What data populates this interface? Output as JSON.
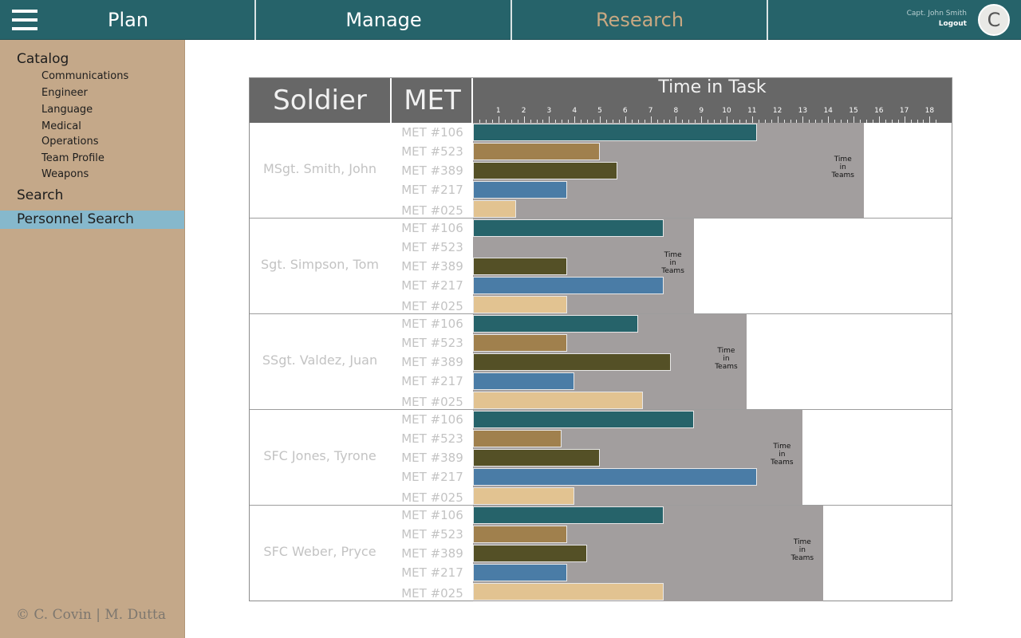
{
  "nav": {
    "tabs": [
      {
        "label": "Plan"
      },
      {
        "label": "Manage"
      },
      {
        "label": "Research"
      }
    ],
    "user_name": "Capt. John Smith",
    "logout_label": "Logout",
    "avatar_initial": "C",
    "menu_icon": "hamburger-menu-icon",
    "active_tab_color": "#c8a882"
  },
  "sidebar": {
    "catalog_label": "Catalog",
    "catalog_items": [
      {
        "label": "Communications"
      },
      {
        "label": "Engineer"
      },
      {
        "label": "Language"
      },
      {
        "label": "Medical"
      },
      {
        "label": "Operations"
      },
      {
        "label": "Team Profile"
      },
      {
        "label": "Weapons"
      }
    ],
    "search_label": "Search",
    "personnel_search_label": "Personnel Search",
    "copyright": "© C. Covin | M. Dutta"
  },
  "grid": {
    "soldier_header": "Soldier",
    "met_header": "MET",
    "time_header": "Time in Task",
    "teams_label": "Time\nin\nTeams"
  },
  "chart_data": {
    "type": "bar",
    "orientation": "horizontal",
    "x_axis_ticks": [
      1,
      2,
      3,
      4,
      5,
      6,
      7,
      8,
      9,
      10,
      11,
      12,
      13,
      14,
      15,
      16,
      17,
      18
    ],
    "xlim": [
      0,
      18.5
    ],
    "met_colors": {
      "MET #106": "#26636a",
      "MET #523": "#a0804d",
      "MET #389": "#545026",
      "MET #217": "#4a7ca6",
      "MET #025": "#e2c391"
    },
    "soldiers": [
      {
        "name": "MSgt. Smith, John",
        "time_in_teams": 15.4,
        "mets": [
          {
            "label": "MET #106",
            "value": 11.2
          },
          {
            "label": "MET #523",
            "value": 5.0
          },
          {
            "label": "MET #389",
            "value": 5.7
          },
          {
            "label": "MET #217",
            "value": 3.7
          },
          {
            "label": "MET #025",
            "value": 1.7
          }
        ]
      },
      {
        "name": "Sgt. Simpson, Tom",
        "time_in_teams": 8.7,
        "mets": [
          {
            "label": "MET #106",
            "value": 7.5
          },
          {
            "label": "MET #523",
            "value": 0
          },
          {
            "label": "MET #389",
            "value": 3.7
          },
          {
            "label": "MET #217",
            "value": 7.5
          },
          {
            "label": "MET #025",
            "value": 3.7
          }
        ]
      },
      {
        "name": "SSgt. Valdez, Juan",
        "time_in_teams": 10.8,
        "mets": [
          {
            "label": "MET #106",
            "value": 6.5
          },
          {
            "label": "MET #523",
            "value": 3.7
          },
          {
            "label": "MET #389",
            "value": 7.8
          },
          {
            "label": "MET #217",
            "value": 4.0
          },
          {
            "label": "MET #025",
            "value": 6.7
          }
        ]
      },
      {
        "name": "SFC Jones, Tyrone",
        "time_in_teams": 13.0,
        "mets": [
          {
            "label": "MET #106",
            "value": 8.7
          },
          {
            "label": "MET #523",
            "value": 3.5
          },
          {
            "label": "MET #389",
            "value": 5.0
          },
          {
            "label": "MET #217",
            "value": 11.2
          },
          {
            "label": "MET #025",
            "value": 4.0
          }
        ]
      },
      {
        "name": "SFC Weber, Pryce",
        "time_in_teams": 13.8,
        "mets": [
          {
            "label": "MET #106",
            "value": 7.5
          },
          {
            "label": "MET #523",
            "value": 3.7
          },
          {
            "label": "MET #389",
            "value": 4.5
          },
          {
            "label": "MET #217",
            "value": 3.7
          },
          {
            "label": "MET #025",
            "value": 7.5
          }
        ]
      }
    ]
  }
}
